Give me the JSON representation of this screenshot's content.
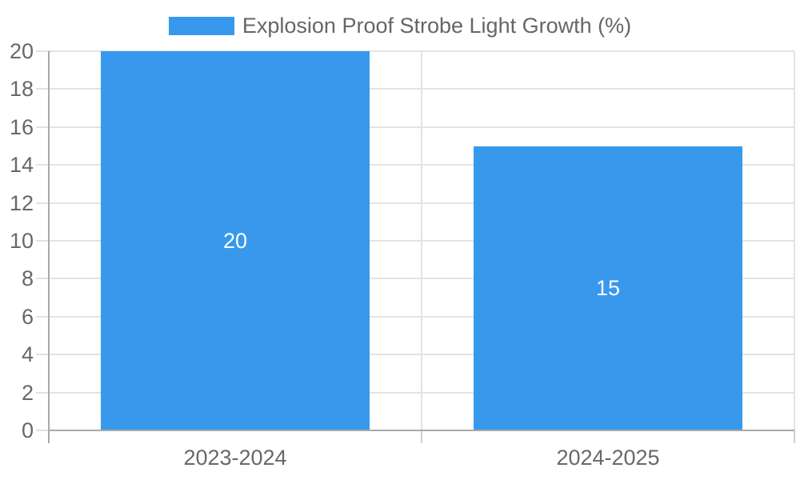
{
  "chart_data": {
    "type": "bar",
    "title": "",
    "legend": "Explosion Proof Strobe Light Growth (%)",
    "legend_position": "top-center",
    "categories": [
      "2023-2024",
      "2024-2025"
    ],
    "values": [
      20,
      15
    ],
    "bar_value_labels": [
      "20",
      "15"
    ],
    "xlabel": "",
    "ylabel": "",
    "ylim": [
      0,
      20
    ],
    "ytick_step": 2,
    "yticks": [
      0,
      2,
      4,
      6,
      8,
      10,
      12,
      14,
      16,
      18,
      20
    ],
    "grid": "horizontal gridlines + category boundary verticals",
    "colors": {
      "bar": "#3899ec",
      "axis_text": "#686868",
      "legend_text": "#666666",
      "grid": "#e3e3e3",
      "axis_border": "#a9a9a9",
      "value_label": "#ffffff",
      "background": "#ffffff"
    }
  }
}
